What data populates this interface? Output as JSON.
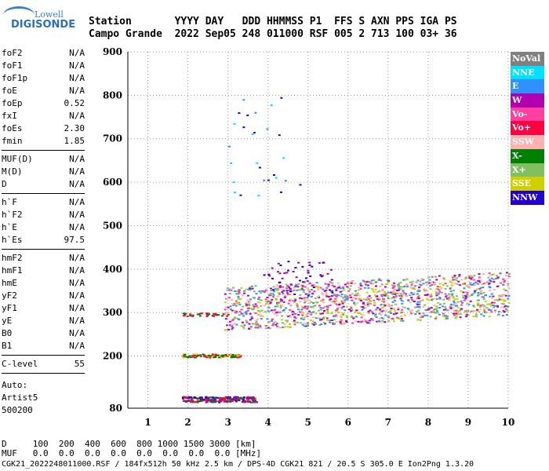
{
  "logo": {
    "line1": "Lowell",
    "line2": "DIGISONDE"
  },
  "header": {
    "row1": "Station       YYYY DAY   DDD HHMMSS P1  FFS S AXN PPS IGA PS",
    "row2": "Campo Grande  2022 Sep05 248 011000 RSF 005 2 713 100 03+ 36"
  },
  "params_group1": [
    {
      "label": "foF2",
      "value": "N/A"
    },
    {
      "label": "foF1",
      "value": "N/A"
    },
    {
      "label": "foF1p",
      "value": "N/A"
    },
    {
      "label": "foE",
      "value": "N/A"
    },
    {
      "label": "foEp",
      "value": "0.52"
    },
    {
      "label": "fxI",
      "value": "N/A"
    },
    {
      "label": "foEs",
      "value": "2.30"
    },
    {
      "label": "fmin",
      "value": "1.85"
    }
  ],
  "params_group2": [
    {
      "label": "MUF(D)",
      "value": "N/A"
    },
    {
      "label": "M(D)",
      "value": "N/A"
    },
    {
      "label": "D",
      "value": "N/A"
    }
  ],
  "params_group3": [
    {
      "label": "h`F",
      "value": "N/A"
    },
    {
      "label": "h`F2",
      "value": "N/A"
    },
    {
      "label": "h`E",
      "value": "N/A"
    },
    {
      "label": "h`Es",
      "value": "97.5"
    }
  ],
  "params_group4": [
    {
      "label": "hmF2",
      "value": "N/A"
    },
    {
      "label": "hmF1",
      "value": "N/A"
    },
    {
      "label": "hmE",
      "value": "N/A"
    },
    {
      "label": "yF2",
      "value": "N/A"
    },
    {
      "label": "yF1",
      "value": "N/A"
    },
    {
      "label": "yE",
      "value": "N/A"
    },
    {
      "label": "B0",
      "value": "N/A"
    },
    {
      "label": "B1",
      "value": "N/A"
    }
  ],
  "clevel": {
    "label": "C-level",
    "value": "55"
  },
  "auto": {
    "line1": "Auto:",
    "line2": "Artist5",
    "line3": "500200"
  },
  "legend": [
    {
      "label": "NoVal",
      "color": "#808080"
    },
    {
      "label": "NNE",
      "color": "#00e0ff"
    },
    {
      "label": "E",
      "color": "#3090ff"
    },
    {
      "label": "W",
      "color": "#b000b0"
    },
    {
      "label": "Vo-",
      "color": "#ff40a0"
    },
    {
      "label": "Vo+",
      "color": "#ff0040"
    },
    {
      "label": "SSW",
      "color": "#ffb0b0"
    },
    {
      "label": "X-",
      "color": "#008000"
    },
    {
      "label": "X+",
      "color": "#80c060"
    },
    {
      "label": "SSE",
      "color": "#d0d000"
    },
    {
      "label": "NNW",
      "color": "#2000d0"
    }
  ],
  "footer": {
    "row1": "D     100  200  400  600  800 1000 1500 3000 [km]",
    "row2": "MUF   0.0  0.0  0.0  0.0  0.0  0.0  0.0  0.0 [MHz]",
    "row3": "CGK21_2022248011000.RSF / 184fx512h 50 kHz 2.5 km / DPS-4D CGK21 821 / 20.5 S 305.0 E Ion2Png 1.3.20"
  },
  "chart_data": {
    "type": "scatter",
    "title": "",
    "xlabel": "",
    "ylabel": "",
    "xlim": [
      0.5,
      10
    ],
    "ylim": [
      80,
      900
    ],
    "xticks": [
      1,
      2,
      3,
      4,
      5,
      6,
      7,
      8,
      9,
      10
    ],
    "yticks": [
      80,
      200,
      300,
      400,
      500,
      600,
      700,
      800,
      900
    ],
    "grid": true,
    "legend_position": "right",
    "series": [
      {
        "region": "Es low trace",
        "x_range": [
          1.85,
          3.7
        ],
        "y_range": [
          95,
          108
        ],
        "dominant_colors": [
          "#b000b0",
          "#ff0040",
          "#008000",
          "#2000d0"
        ]
      },
      {
        "region": "Es 2nd hop",
        "x_range": [
          1.85,
          3.3
        ],
        "y_range": [
          198,
          206
        ],
        "dominant_colors": [
          "#ff0040",
          "#008000",
          "#d0d000"
        ]
      },
      {
        "region": "Es layer 300km",
        "x_range": [
          1.85,
          3.0
        ],
        "y_range": [
          293,
          300
        ],
        "dominant_colors": [
          "#ff0040",
          "#008000"
        ]
      },
      {
        "region": "F-region spread",
        "x_range": [
          2.9,
          10
        ],
        "y_range": [
          260,
          360
        ],
        "dominant_colors": [
          "#d0d000",
          "#ff40a0",
          "#ffb0b0",
          "#b000b0",
          "#3090ff",
          "#80c060"
        ]
      },
      {
        "region": "Upper spread",
        "x_range": [
          3.8,
          5.6
        ],
        "y_range": [
          340,
          420
        ],
        "dominant_colors": [
          "#2000d0",
          "#b000b0"
        ]
      },
      {
        "region": "High echoes",
        "x_range": [
          2.95,
          4.9
        ],
        "y_range": [
          570,
          800
        ],
        "dominant_colors": [
          "#00e0ff",
          "#3090ff",
          "#2000d0"
        ]
      }
    ]
  }
}
